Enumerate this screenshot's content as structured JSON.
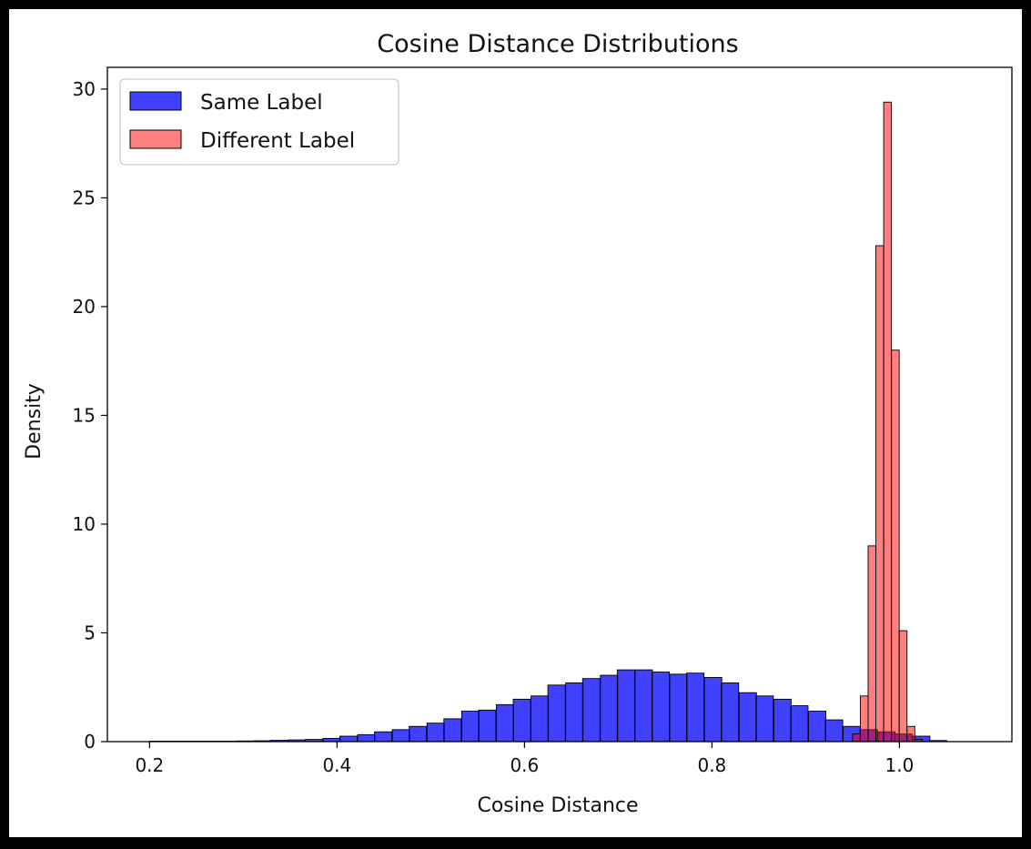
{
  "chart_data": {
    "type": "histogram",
    "title": "Cosine Distance Distributions",
    "xlabel": "Cosine Distance",
    "ylabel": "Density",
    "xlim": [
      0.155,
      1.12
    ],
    "ylim": [
      0,
      31
    ],
    "xticks": [
      0.2,
      0.4,
      0.6,
      0.8,
      1.0
    ],
    "xtick_labels": [
      "0.2",
      "0.4",
      "0.6",
      "0.8",
      "1.0"
    ],
    "yticks": [
      0,
      5,
      10,
      15,
      20,
      25,
      30
    ],
    "ytick_labels": [
      "0",
      "5",
      "10",
      "15",
      "20",
      "25",
      "30"
    ],
    "grid": false,
    "legend_position": "top-left",
    "series": [
      {
        "name": "Same Label",
        "color": "#0000ff",
        "alpha": 0.75,
        "bin_width": 0.0185,
        "bins": [
          [
            0.2,
            0.02
          ],
          [
            0.218,
            0.02
          ],
          [
            0.237,
            0.02
          ],
          [
            0.255,
            0.02
          ],
          [
            0.274,
            0.02
          ],
          [
            0.292,
            0.03
          ],
          [
            0.311,
            0.04
          ],
          [
            0.329,
            0.06
          ],
          [
            0.348,
            0.08
          ],
          [
            0.366,
            0.1
          ],
          [
            0.385,
            0.15
          ],
          [
            0.403,
            0.25
          ],
          [
            0.422,
            0.32
          ],
          [
            0.44,
            0.45
          ],
          [
            0.459,
            0.55
          ],
          [
            0.477,
            0.7
          ],
          [
            0.496,
            0.85
          ],
          [
            0.514,
            1.05
          ],
          [
            0.533,
            1.4
          ],
          [
            0.551,
            1.45
          ],
          [
            0.57,
            1.7
          ],
          [
            0.588,
            1.95
          ],
          [
            0.607,
            2.1
          ],
          [
            0.625,
            2.6
          ],
          [
            0.644,
            2.7
          ],
          [
            0.662,
            2.9
          ],
          [
            0.681,
            3.05
          ],
          [
            0.699,
            3.3
          ],
          [
            0.718,
            3.3
          ],
          [
            0.736,
            3.2
          ],
          [
            0.755,
            3.1
          ],
          [
            0.773,
            3.15
          ],
          [
            0.792,
            2.95
          ],
          [
            0.81,
            2.7
          ],
          [
            0.829,
            2.25
          ],
          [
            0.847,
            2.1
          ],
          [
            0.866,
            1.95
          ],
          [
            0.884,
            1.65
          ],
          [
            0.903,
            1.4
          ],
          [
            0.921,
            1.0
          ],
          [
            0.94,
            0.7
          ],
          [
            0.958,
            0.55
          ],
          [
            0.977,
            0.45
          ],
          [
            0.995,
            0.35
          ],
          [
            1.014,
            0.25
          ],
          [
            1.032,
            0.05
          ]
        ]
      },
      {
        "name": "Different Label",
        "color": "#ff0000",
        "alpha": 0.5,
        "bin_width": 0.0083,
        "bins": [
          [
            0.95,
            0.35
          ],
          [
            0.9583,
            2.1
          ],
          [
            0.9666,
            9.0
          ],
          [
            0.9749,
            22.8
          ],
          [
            0.9832,
            29.4
          ],
          [
            0.9915,
            18.0
          ],
          [
            0.9998,
            5.1
          ],
          [
            1.0081,
            0.7
          ],
          [
            1.0164,
            0.1
          ]
        ]
      }
    ]
  }
}
